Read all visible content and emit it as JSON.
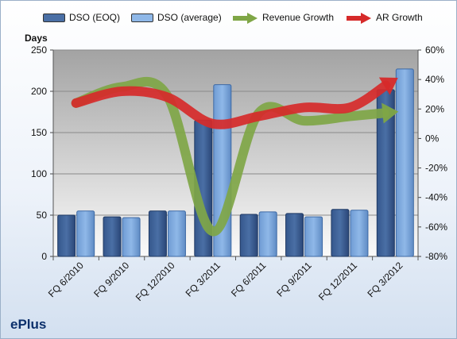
{
  "company": "ePlus",
  "legend": {
    "dso_eoq": "DSO (EOQ)",
    "dso_avg": "DSO (average)",
    "revenue_growth": "Revenue Growth",
    "ar_growth": "AR Growth"
  },
  "colors": {
    "dso_eoq": "#4a6fa5",
    "dso_avg": "#8fb8e8",
    "revenue_growth": "#7fa646",
    "ar_growth": "#d62a2a"
  },
  "chart_data": {
    "type": "bar",
    "categories": [
      "FQ 6/2010",
      "FQ 9/2010",
      "FQ 12/2010",
      "FQ 3/2011",
      "FQ 6/2011",
      "FQ 9/2011",
      "FQ 12/2011",
      "FQ 3/2012"
    ],
    "ylabel": "Days",
    "ylim": [
      0,
      250
    ],
    "yticks": [
      "0",
      "50",
      "100",
      "150",
      "200",
      "250"
    ],
    "y2lim": [
      -80,
      60
    ],
    "y2ticks": [
      "-80%",
      "-60%",
      "-40%",
      "-20%",
      "0%",
      "20%",
      "40%",
      "60%"
    ],
    "series": [
      {
        "name": "DSO (EOQ)",
        "axis": "left",
        "kind": "bar",
        "values": [
          50,
          48,
          55,
          165,
          51,
          52,
          57,
          202
        ]
      },
      {
        "name": "DSO (average)",
        "axis": "left",
        "kind": "bar",
        "values": [
          55,
          47,
          55,
          208,
          54,
          48,
          56,
          227
        ]
      },
      {
        "name": "Revenue Growth",
        "axis": "right",
        "kind": "line",
        "values": [
          24,
          35,
          29,
          -63,
          17,
          12,
          15,
          18
        ]
      },
      {
        "name": "AR Growth",
        "axis": "right",
        "kind": "line",
        "values": [
          24,
          32,
          28,
          10,
          15,
          21,
          21,
          40
        ]
      }
    ],
    "legend_position": "top",
    "grid": true
  }
}
